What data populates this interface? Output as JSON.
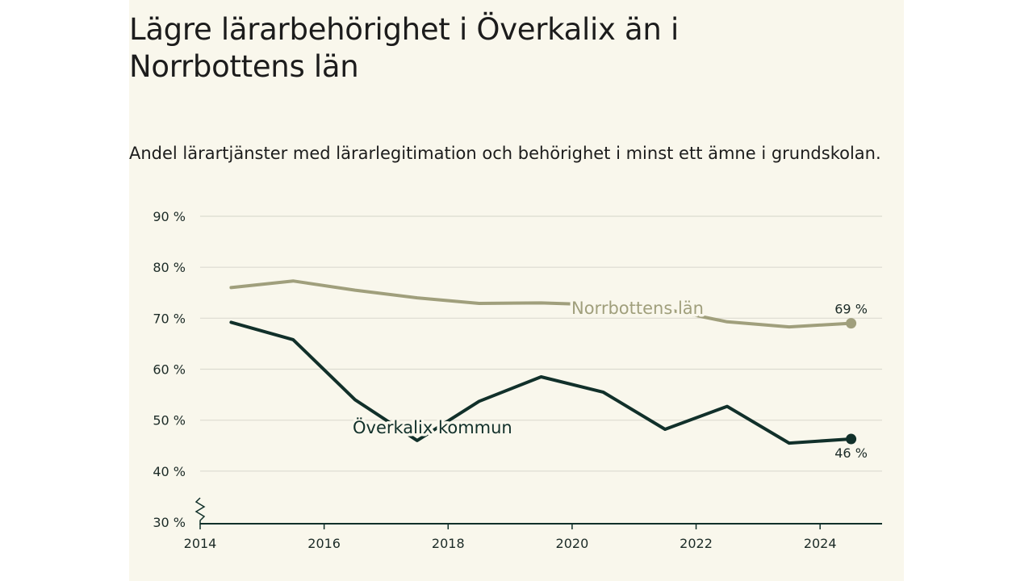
{
  "title": "Lägre lärarbehörighet i Överkalix än i Norrbottens län",
  "subtitle": "Andel lärartjänster med lärarlegitimation och behörighet i minst ett ämne i grundskolan.",
  "chart_data": {
    "type": "line",
    "x": [
      2014.5,
      2015.5,
      2016.5,
      2017.5,
      2018.5,
      2019.5,
      2020.5,
      2021.5,
      2022.5,
      2023.5,
      2024.5
    ],
    "xlim": [
      2014,
      2025
    ],
    "ylim": [
      30,
      90
    ],
    "x_ticks": [
      2014,
      2016,
      2018,
      2020,
      2022,
      2024
    ],
    "x_tick_labels": [
      "2014",
      "2016",
      "2018",
      "2020",
      "2022",
      "2024"
    ],
    "y_ticks": [
      30,
      40,
      50,
      60,
      70,
      80,
      90
    ],
    "y_tick_labels": [
      "30 %",
      "40 %",
      "50 %",
      "60 %",
      "70 %",
      "80 %",
      "90 %"
    ],
    "axis_break": true,
    "grid": true,
    "series": [
      {
        "name": "Norrbottens län",
        "color": "#a09f7c",
        "values": [
          76,
          77.3,
          75.5,
          74,
          72.9,
          73,
          72.6,
          71.8,
          69.3,
          68.3,
          69
        ],
        "end_label": "69 %"
      },
      {
        "name": "Överkalix kommun",
        "color": "#11302a",
        "values": [
          69.2,
          65.8,
          54,
          46,
          53.7,
          58.5,
          55.5,
          48.2,
          52.7,
          45.5,
          46.3
        ],
        "end_label": "46 %"
      }
    ]
  }
}
